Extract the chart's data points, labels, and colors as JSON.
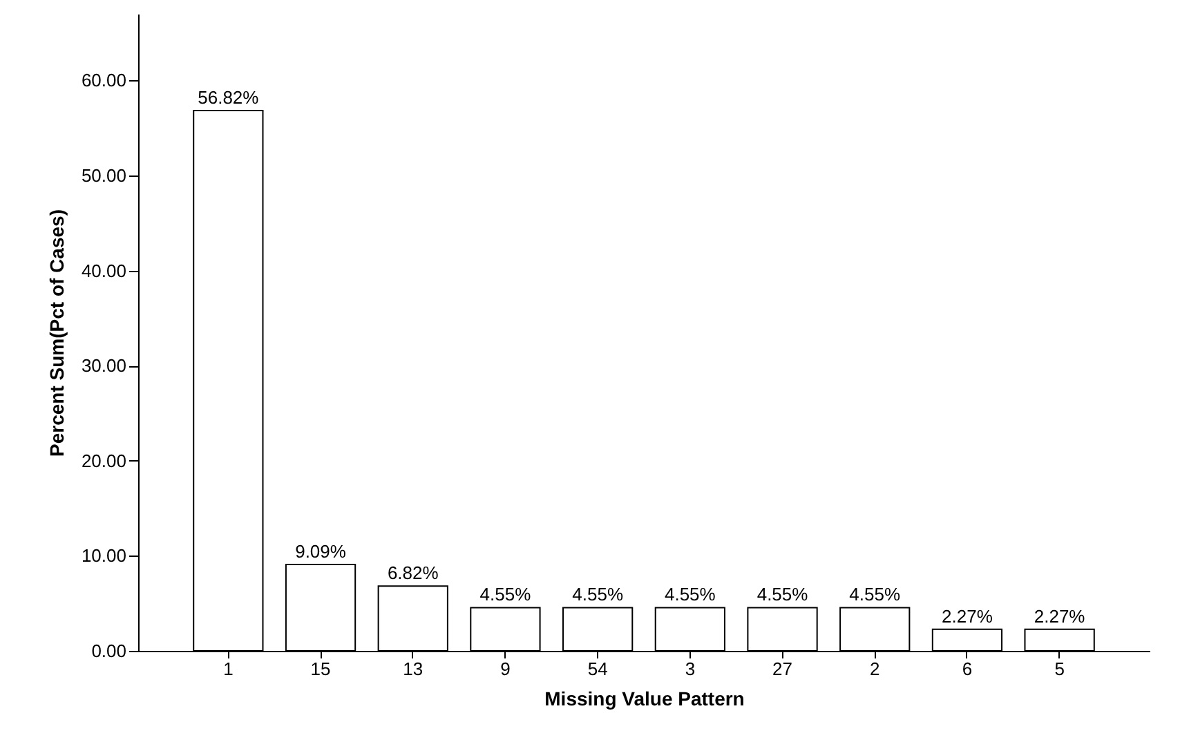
{
  "chart_data": {
    "type": "bar",
    "xlabel": "Missing Value Pattern",
    "ylabel": "Percent Sum(Pct of Cases)",
    "categories": [
      "1",
      "15",
      "13",
      "9",
      "54",
      "3",
      "27",
      "2",
      "6",
      "5"
    ],
    "values": [
      56.82,
      9.09,
      6.82,
      4.55,
      4.55,
      4.55,
      4.55,
      4.55,
      2.27,
      2.27
    ],
    "value_labels": [
      "56.82%",
      "9.09%",
      "6.82%",
      "4.55%",
      "4.55%",
      "4.55%",
      "4.55%",
      "4.55%",
      "2.27%",
      "2.27%"
    ],
    "color": "#ffffff",
    "ylim": [
      0,
      67
    ],
    "yticks": [
      {
        "value": 0,
        "label": "0.00"
      },
      {
        "value": 10,
        "label": "10.00"
      },
      {
        "value": 20,
        "label": "20.00"
      },
      {
        "value": 30,
        "label": "30.00"
      },
      {
        "value": 40,
        "label": "40.00"
      },
      {
        "value": 50,
        "label": "50.00"
      },
      {
        "value": 60,
        "label": "60.00"
      }
    ],
    "grid": false
  }
}
